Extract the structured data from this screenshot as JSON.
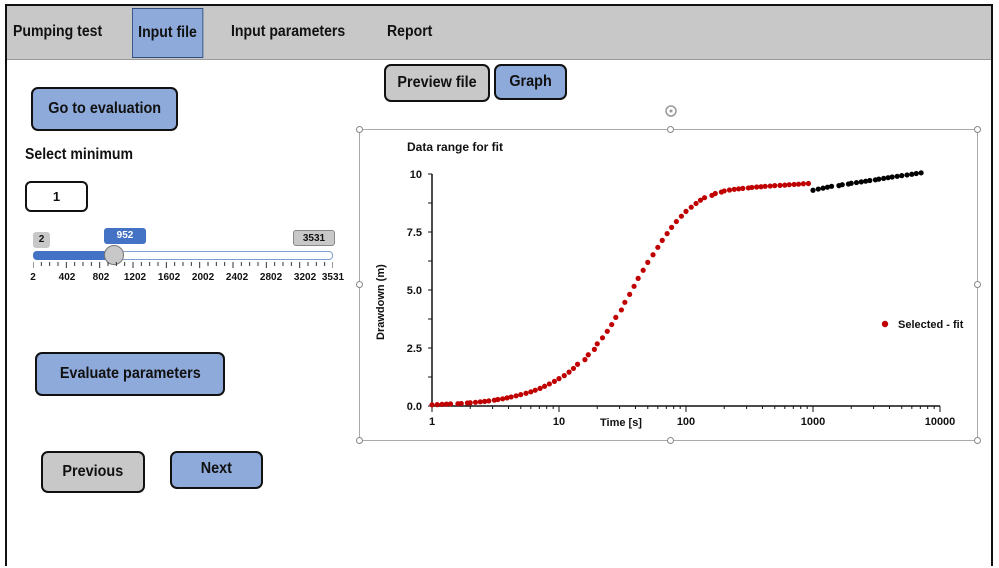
{
  "menu": {
    "items": [
      {
        "label": "Pumping test"
      },
      {
        "label": "Input file"
      },
      {
        "label": "Input parameters"
      },
      {
        "label": "Report"
      }
    ],
    "active_index": 1
  },
  "buttons": {
    "go_to_evaluation": "Go to evaluation",
    "preview_file": "Preview file",
    "graph": "Graph",
    "evaluate_parameters": "Evaluate parameters",
    "previous": "Previous",
    "next": "Next"
  },
  "select_minimum": {
    "label": "Select minimum",
    "input_value": "1"
  },
  "slider": {
    "min": 2,
    "max": 3531,
    "value": 952,
    "min_label": "2",
    "value_label": "952",
    "max_label": "3531",
    "tick_labels": [
      "2",
      "402",
      "802",
      "1202",
      "1602",
      "2002",
      "2402",
      "2802",
      "3202",
      "3531"
    ]
  },
  "colors": {
    "accent_blue": "#8eaadb",
    "slider_blue": "#4472c4",
    "button_gray": "#c8c8c8",
    "selected_series": "#c00000",
    "fit_series": "#000000"
  },
  "chart_data": {
    "type": "scatter",
    "title": "Data range for fit",
    "xlabel": "Time [s]",
    "ylabel": "Drawdown (m)",
    "x_scale": "log",
    "xlim": [
      1,
      10000
    ],
    "ylim": [
      0,
      10
    ],
    "x_ticks": [
      "1",
      "10",
      "100",
      "1000",
      "10000"
    ],
    "y_ticks": [
      "0.0",
      "2.5",
      "5.0",
      "7.5",
      "10"
    ],
    "legend": {
      "position": "right",
      "entries": [
        {
          "label": "Selected - fit",
          "color": "#c00000"
        }
      ]
    },
    "series": [
      {
        "name": "Selected - fit",
        "color": "#c00000",
        "x": [
          1,
          1.1,
          1.2,
          1.3,
          1.4,
          1.6,
          1.7,
          1.9,
          2.0,
          2.2,
          2.4,
          2.6,
          2.8,
          3.1,
          3.3,
          3.6,
          3.9,
          4.2,
          4.6,
          5.0,
          5.5,
          6.0,
          6.5,
          7.1,
          7.7,
          8.4,
          9.2,
          10,
          11,
          12,
          13,
          14,
          16,
          17,
          19,
          20,
          22,
          24,
          26,
          28,
          31,
          33,
          36,
          39,
          42,
          46,
          50,
          55,
          60,
          65,
          71,
          77,
          84,
          92,
          100,
          110,
          120,
          130,
          140,
          160,
          170,
          190,
          200,
          220,
          240,
          260,
          280,
          310,
          330,
          360,
          390,
          420,
          460,
          500,
          550,
          600,
          650,
          710,
          770,
          840,
          920
        ],
        "y": [
          0.05,
          0.06,
          0.07,
          0.08,
          0.09,
          0.1,
          0.11,
          0.13,
          0.14,
          0.16,
          0.18,
          0.2,
          0.22,
          0.25,
          0.28,
          0.31,
          0.35,
          0.39,
          0.44,
          0.49,
          0.55,
          0.61,
          0.68,
          0.76,
          0.85,
          0.95,
          1.06,
          1.18,
          1.31,
          1.46,
          1.62,
          1.8,
          2.0,
          2.21,
          2.44,
          2.68,
          2.94,
          3.22,
          3.51,
          3.82,
          4.14,
          4.47,
          4.81,
          5.16,
          5.5,
          5.85,
          6.19,
          6.52,
          6.84,
          7.14,
          7.43,
          7.7,
          7.95,
          8.18,
          8.39,
          8.57,
          8.73,
          8.87,
          8.98,
          9.08,
          9.16,
          9.22,
          9.27,
          9.31,
          9.34,
          9.36,
          9.38,
          9.4,
          9.42,
          9.44,
          9.45,
          9.47,
          9.48,
          9.5,
          9.51,
          9.52,
          9.54,
          9.55,
          9.56,
          9.58,
          9.59
        ]
      },
      {
        "name": "",
        "color": "#000000",
        "x": [
          1000,
          1100,
          1200,
          1300,
          1400,
          1600,
          1700,
          1900,
          2000,
          2200,
          2400,
          2600,
          2800,
          3100,
          3300,
          3600,
          3900,
          4200,
          4600,
          5000,
          5500,
          6000,
          6500,
          7100
        ],
        "y": [
          9.3,
          9.35,
          9.39,
          9.43,
          9.47,
          9.5,
          9.54,
          9.57,
          9.6,
          9.63,
          9.66,
          9.69,
          9.72,
          9.75,
          9.78,
          9.81,
          9.84,
          9.87,
          9.9,
          9.93,
          9.96,
          9.99,
          10.02,
          10.05
        ]
      }
    ]
  }
}
